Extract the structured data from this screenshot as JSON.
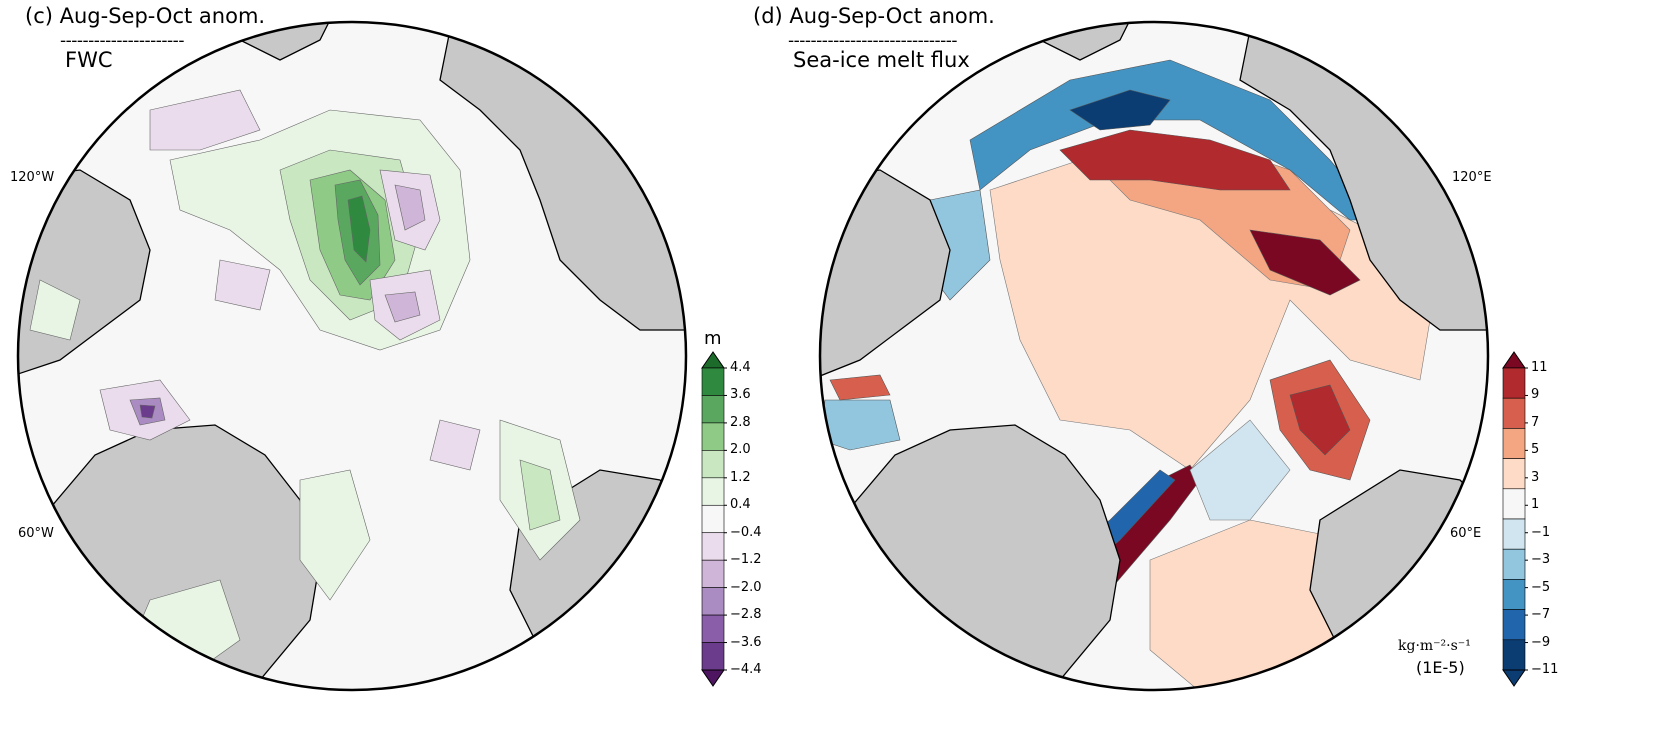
{
  "panel_c": {
    "title": "(c) Aug-Sep-Oct anom.",
    "dashes": "----------------------",
    "subtitle": "FWC",
    "lon_left_top": "120°W",
    "lon_left_bottom": "60°W",
    "colorbar": {
      "unit": "m",
      "ticks": [
        "4.4",
        "3.6",
        "2.8",
        "2.0",
        "1.2",
        "0.4",
        "−0.4",
        "−1.2",
        "−2.0",
        "−2.8",
        "−3.6",
        "−4.4"
      ],
      "colors": [
        "#1d6b2b",
        "#2f8a3f",
        "#5aa860",
        "#8fcb87",
        "#c9e8c2",
        "#e8f5e4",
        "#f7f7f7",
        "#eadcec",
        "#cfb6d8",
        "#ab8cc2",
        "#8a5ea8",
        "#6b3b8c",
        "#4e1560"
      ]
    }
  },
  "panel_d": {
    "title": "(d) Aug-Sep-Oct anom.",
    "dashes": "------------------------------",
    "subtitle": "Sea-ice melt flux",
    "lon_right_top": "120°E",
    "lon_right_bottom": "60°E",
    "colorbar": {
      "unit_label": "kg·m⁻²·s⁻¹",
      "scale_label": "(1E-5)",
      "ticks": [
        "11",
        "9",
        "7",
        "5",
        "3",
        "1",
        "−1",
        "−3",
        "−5",
        "−7",
        "−9",
        "−11"
      ],
      "colors": [
        "#7a0822",
        "#b02a2e",
        "#d6604d",
        "#f4a582",
        "#fddbc7",
        "#f7f7f7",
        "#d1e5f0",
        "#92c5de",
        "#4393c3",
        "#2166ac",
        "#0b3d73",
        "#0b3d73"
      ]
    }
  },
  "colors": {
    "land": "#c8c8c8",
    "ocean_background": "#f7f7f7",
    "coastline": "#000000"
  }
}
